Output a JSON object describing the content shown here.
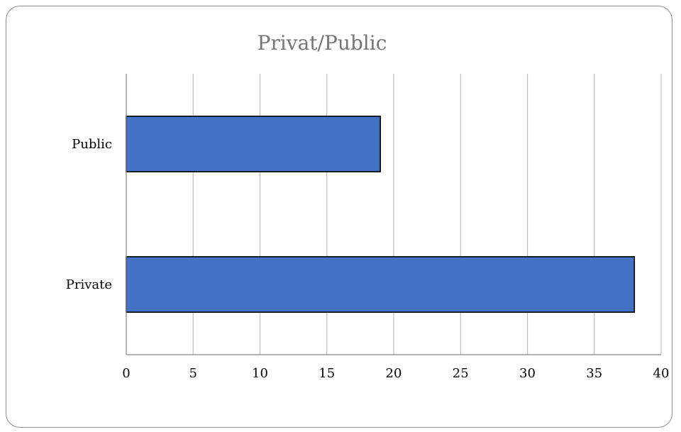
{
  "chart_data": {
    "type": "bar",
    "orientation": "horizontal",
    "title": "Privat/Public",
    "categories": [
      "Public",
      "Private"
    ],
    "values": [
      19,
      38
    ],
    "xlim": [
      0,
      40
    ],
    "xticks": [
      "0",
      "5",
      "10",
      "15",
      "20",
      "25",
      "30",
      "35",
      "40"
    ],
    "xlabel": "",
    "ylabel": "",
    "grid": "vertical",
    "legend": "none",
    "colors": {
      "bar": "#4472c4",
      "bar_border": "#000000",
      "grid": "#bfbfbf",
      "axis": "#868686",
      "title": "#757575",
      "frame": "#8c8c8c"
    }
  }
}
